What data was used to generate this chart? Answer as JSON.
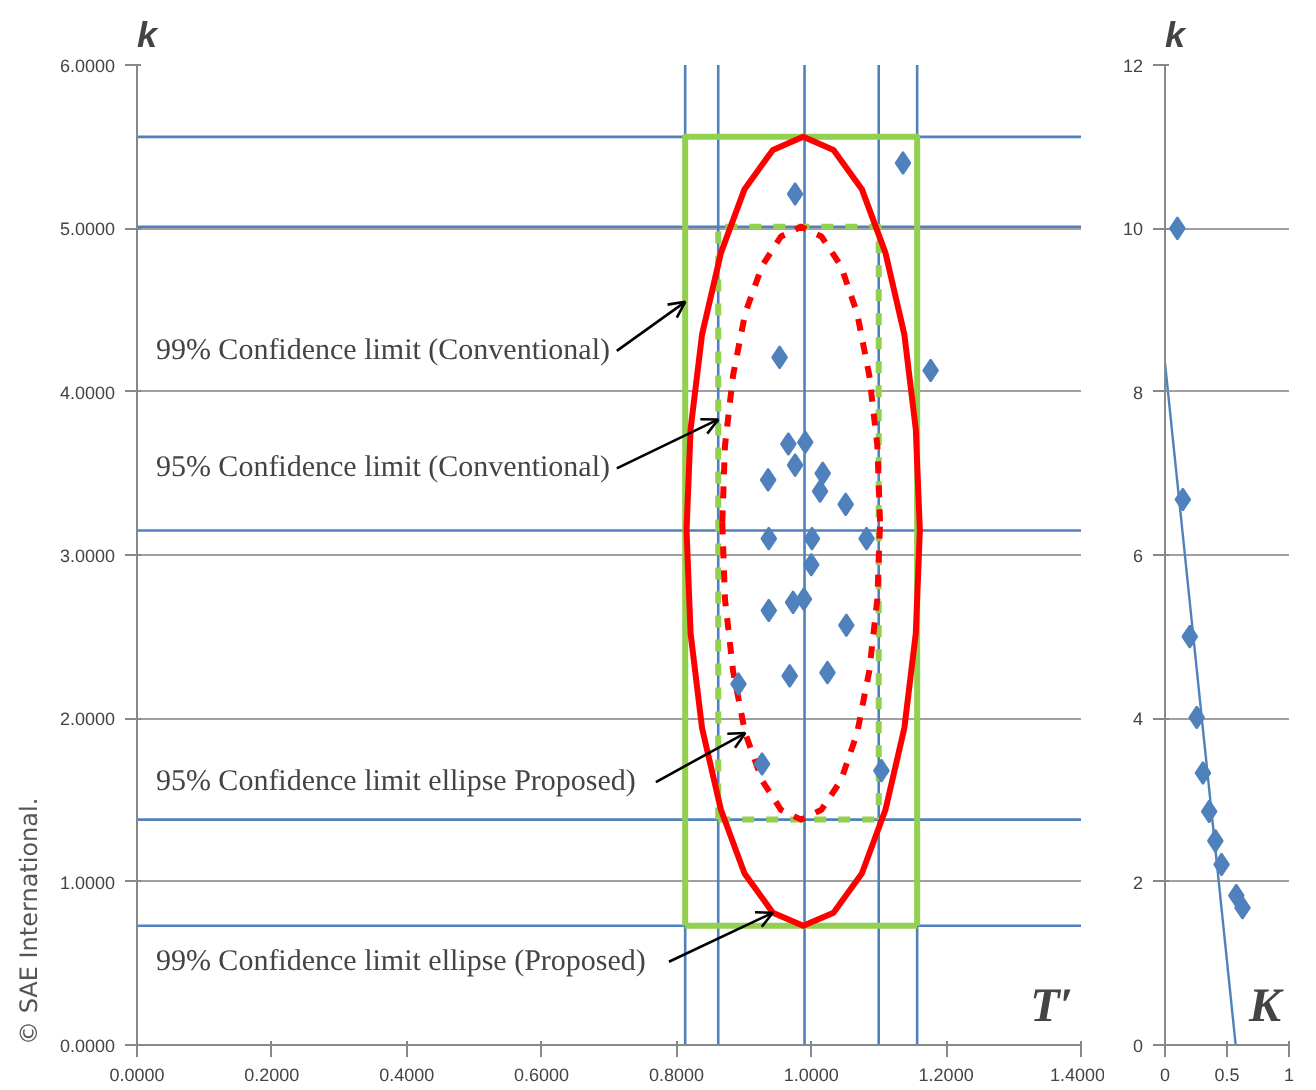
{
  "chart_data": [
    {
      "type": "line",
      "ylabel": "k",
      "xlabel": "T′",
      "xlim": [
        0,
        1.4
      ],
      "ylim": [
        0,
        6
      ],
      "xticks": [
        {
          "value": 0,
          "label": "0.0000"
        },
        {
          "value": 0.2,
          "label": "0.2000"
        },
        {
          "value": 0.4,
          "label": "0.4000"
        },
        {
          "value": 0.6,
          "label": "0.6000"
        },
        {
          "value": 0.8,
          "label": "0.8000"
        },
        {
          "value": 1.0,
          "label": "1.0000"
        },
        {
          "value": 1.2,
          "label": "1.2000"
        },
        {
          "value": 1.4,
          "label": "1.4000"
        }
      ],
      "yticks": [
        {
          "value": 0,
          "label": "0.0000"
        },
        {
          "value": 1,
          "label": "1.0000"
        },
        {
          "value": 2,
          "label": "2.0000"
        },
        {
          "value": 3,
          "label": "3.0000"
        },
        {
          "value": 4,
          "label": "4.0000"
        },
        {
          "value": 5,
          "label": "5.0000"
        },
        {
          "value": 6,
          "label": "6.0000"
        }
      ],
      "grid": "y",
      "ref_lines": [
        {
          "axis": "x",
          "value": 0.813,
          "color": "#4f81bd"
        },
        {
          "axis": "x",
          "value": 0.862,
          "color": "#4f81bd"
        },
        {
          "axis": "x",
          "value": 0.99,
          "color": "#4f81bd"
        },
        {
          "axis": "x",
          "value": 1.1,
          "color": "#4f81bd"
        },
        {
          "axis": "x",
          "value": 1.157,
          "color": "#4f81bd"
        },
        {
          "axis": "y",
          "value": 0.73,
          "color": "#4f81bd"
        },
        {
          "axis": "y",
          "value": 1.38,
          "color": "#4f81bd"
        },
        {
          "axis": "y",
          "value": 3.15,
          "color": "#4f81bd"
        },
        {
          "axis": "y",
          "value": 5.01,
          "color": "#4f81bd"
        },
        {
          "axis": "y",
          "value": 5.56,
          "color": "#4f81bd"
        }
      ],
      "series": [
        {
          "color": "#92d050",
          "line_style": "solid",
          "marker": "none",
          "x": [
            0.813,
            0.813,
            1.157,
            1.157,
            null,
            0.813,
            1.157
          ],
          "values": [
            0.73,
            5.56,
            5.56,
            0.73,
            null,
            0.73,
            0.73
          ]
        },
        {
          "color": "#92d050",
          "line_style": "dashed",
          "marker": "none",
          "x": [
            0.862,
            0.862,
            1.1,
            1.1,
            null,
            0.862,
            1.1
          ],
          "values": [
            1.38,
            5.01,
            5.01,
            1.38,
            null,
            1.38,
            1.38
          ]
        },
        {
          "color": "#ff0000",
          "line_style": "solid",
          "marker": "none",
          "x": [
            0.815,
            0.821,
            0.838,
            0.866,
            0.901,
            0.943,
            0.988,
            1.033,
            1.075,
            1.11,
            1.138,
            1.155,
            1.161,
            null,
            0.815,
            0.821,
            0.838,
            0.866,
            0.901,
            0.943,
            0.988,
            1.033,
            1.075,
            1.11,
            1.138,
            1.155,
            1.161
          ],
          "values": [
            3.15,
            3.77,
            4.35,
            4.85,
            5.24,
            5.48,
            5.56,
            5.48,
            5.24,
            4.85,
            4.35,
            3.77,
            3.15,
            null,
            3.15,
            2.52,
            1.94,
            1.44,
            1.05,
            0.81,
            0.73,
            0.81,
            1.05,
            1.44,
            1.94,
            2.52,
            3.15
          ]
        },
        {
          "color": "#ff0000",
          "line_style": "dashed",
          "marker": "none",
          "x": [
            0.868,
            0.872,
            0.884,
            0.902,
            0.927,
            0.955,
            0.985,
            1.015,
            1.044,
            1.068,
            1.086,
            1.098,
            1.102,
            null,
            0.868,
            0.872,
            0.884,
            0.902,
            0.927,
            0.955,
            0.985,
            1.015,
            1.044,
            1.068,
            1.086,
            1.098,
            1.102
          ],
          "values": [
            3.2,
            3.67,
            4.1,
            4.48,
            4.77,
            4.95,
            5.01,
            4.95,
            4.77,
            4.48,
            4.1,
            3.67,
            3.2,
            null,
            3.2,
            2.73,
            2.29,
            1.91,
            1.62,
            1.44,
            1.38,
            1.44,
            1.62,
            1.91,
            2.29,
            2.73,
            3.2
          ]
        },
        {
          "type": "scatter",
          "color": "#4f81bd",
          "marker": "diamond",
          "x": [
            1.136,
            0.976,
            0.953,
            1.177,
            0.966,
            0.991,
            0.976,
            0.936,
            1.017,
            1.013,
            1.051,
            0.937,
            1.001,
            1.082,
            1.0,
            0.937,
            0.973,
            0.989,
            1.052,
            0.892,
            0.968,
            1.024,
            0.927,
            1.104
          ],
          "values": [
            5.4,
            5.21,
            4.21,
            4.13,
            3.68,
            3.69,
            3.55,
            3.46,
            3.5,
            3.39,
            3.31,
            3.1,
            3.1,
            3.1,
            2.94,
            2.66,
            2.71,
            2.73,
            2.57,
            2.21,
            2.26,
            2.28,
            1.72,
            1.68
          ]
        }
      ],
      "annotations": [
        {
          "text": "99% Confidence limit (Conventional)",
          "x": 0.813,
          "y": 4.55
        },
        {
          "text": "95% Confidence limit (Conventional)",
          "x": 0.862,
          "y": 3.83
        },
        {
          "text": "95% Confidence limit ellipse Proposed)",
          "x": 0.902,
          "y": 1.91
        },
        {
          "text": "99% Confidence limit ellipse (Proposed)",
          "x": 0.943,
          "y": 0.81
        },
        "© SAE International."
      ]
    },
    {
      "type": "scatter",
      "ylabel": "k",
      "xlabel": "K",
      "xlim": [
        0,
        1
      ],
      "ylim": [
        0,
        12
      ],
      "xticks": [
        0,
        {
          "value": 0.5,
          "label": "0.5"
        },
        1
      ],
      "yticks": [
        0,
        2,
        4,
        6,
        8,
        10,
        12
      ],
      "grid": "y",
      "marker": "diamond",
      "series": [
        {
          "color": "#4f81bd",
          "x": [
            0.1,
            0.144,
            0.2,
            0.256,
            0.306,
            0.356,
            0.406,
            0.456,
            0.575,
            0.625
          ],
          "values": [
            10.0,
            6.68,
            5.0,
            4.01,
            3.33,
            2.86,
            2.5,
            2.21,
            1.83,
            1.68
          ]
        },
        {
          "type": "line",
          "color": "#4f81bd",
          "line_style": "solid",
          "marker": "none",
          "x": [
            0,
            0.57
          ],
          "values": [
            8.35,
            0
          ]
        }
      ]
    }
  ]
}
